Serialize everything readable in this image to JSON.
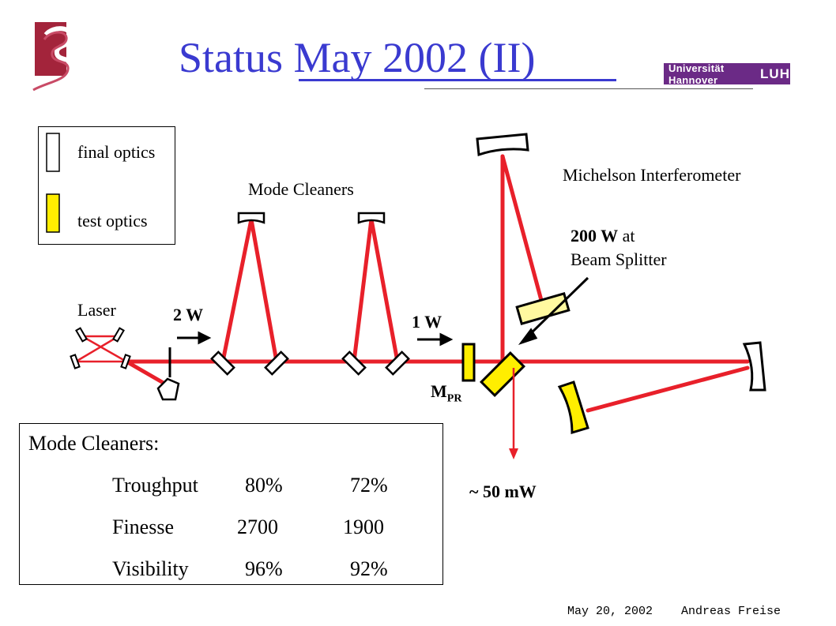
{
  "header": {
    "title": "Status May 2002 (II)",
    "logo_left_icon": "gravity-logo-icon",
    "university_logo_text": "Universität Hannover",
    "university_logo_mark": "LUH"
  },
  "legend": {
    "final_optics": "final optics",
    "test_optics": "test optics"
  },
  "diagram": {
    "mode_cleaners_label": "Mode Cleaners",
    "michelson_label": "Michelson Interferometer",
    "laser_label": "Laser",
    "power_2w": "2 W",
    "power_1w": "1 W",
    "mpr_main": "M",
    "mpr_sub": "PR",
    "bs_power_value": "200 W",
    "bs_power_at": " at",
    "bs_label": "Beam Splitter",
    "output_power": "~ 50 mW"
  },
  "mode_cleaners_table": {
    "heading": "Mode Cleaners:",
    "rows": [
      {
        "label": "Troughput",
        "mc1": "80%",
        "mc2": "72%"
      },
      {
        "label": "Finesse",
        "mc1": "2700",
        "mc2": "1900"
      },
      {
        "label": "Visibility",
        "mc1": "96%",
        "mc2": "92%"
      }
    ]
  },
  "footer": {
    "date": "May 20, 2002",
    "author": "Andreas Freise"
  },
  "colors": {
    "title": "#3a3ad0",
    "beam": "#e8202a",
    "test_optic": "#ffee00",
    "test_optic_light": "#fff9a0",
    "logo_purple": "#6b2a86",
    "logo_red": "#a3243b"
  }
}
